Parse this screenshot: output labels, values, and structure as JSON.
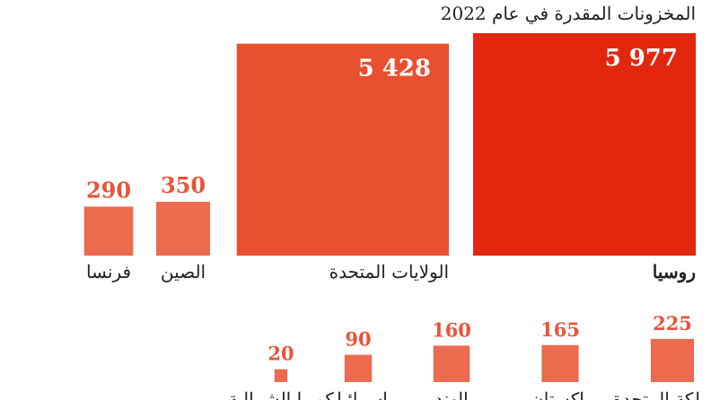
{
  "chart_data": {
    "type": "bar",
    "title": "المخزونات المقدرة في عام 2022",
    "categories": [
      "روسيا",
      "الولايات المتحدة",
      "الصين",
      "فرنسا",
      "المملكة المتحدة",
      "باكستان",
      "الهند",
      "إسرائيل",
      "كوريا الشمالية"
    ],
    "value_labels": [
      "5 977",
      "5 428",
      "350",
      "290",
      "225",
      "165",
      "160",
      "90",
      "20"
    ],
    "values": [
      5977,
      5428,
      350,
      290,
      225,
      165,
      160,
      90,
      20
    ],
    "highlight_category": "روسيا",
    "encoding": "square area proportional to value"
  },
  "colors": {
    "highlight": "#e3270f",
    "large": "#e9502f",
    "small": "#ec6a4e",
    "label_text": "#e8543a",
    "text": "#222222"
  }
}
